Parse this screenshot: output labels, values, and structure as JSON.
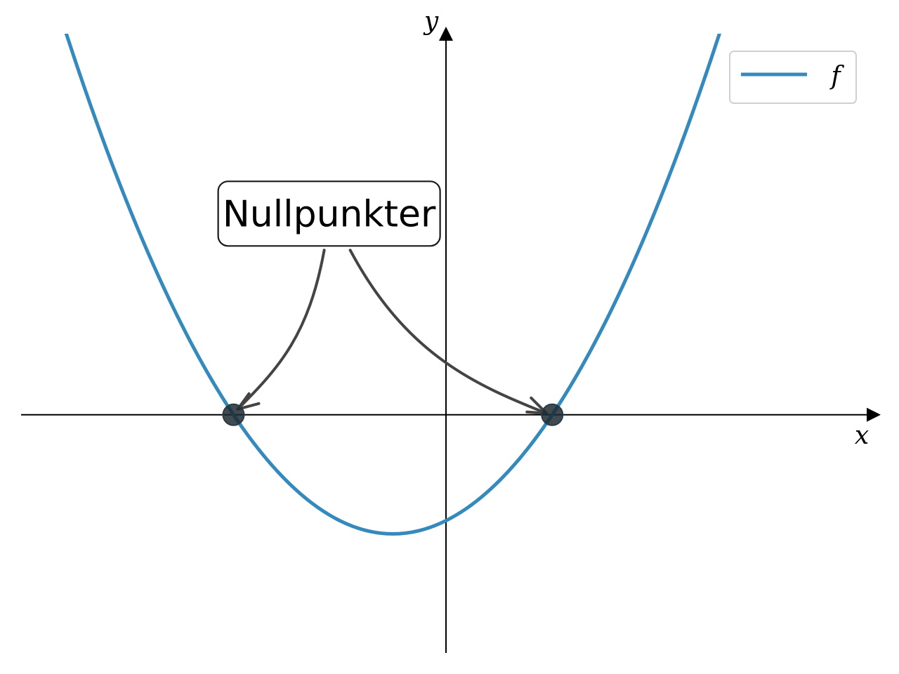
{
  "chart_data": {
    "type": "line",
    "title": "",
    "xlabel": "x",
    "ylabel": "y",
    "xlim": [
      -4,
      4
    ],
    "ylim": [
      -2.25,
      3.6
    ],
    "grid": false,
    "legend_position": "top-right",
    "series": [
      {
        "name": "f",
        "function": "0.5*x^2 + 0.5*x - 1",
        "x_range": [
          -3.7,
          2.7
        ],
        "color": "#348ABD",
        "roots": [
          -2,
          1
        ],
        "vertex": [
          -0.5,
          -1.125
        ]
      }
    ],
    "points": [
      {
        "x": -2,
        "y": 0,
        "color": "#1f2a33"
      },
      {
        "x": 1,
        "y": 0,
        "color": "#1f2a33"
      }
    ],
    "annotation": {
      "text": "Nullpunkter",
      "anchor": [
        -1.1,
        1.9
      ],
      "targets": [
        [
          -2,
          0
        ],
        [
          1,
          0
        ]
      ],
      "arrow_color": "#444444"
    }
  }
}
